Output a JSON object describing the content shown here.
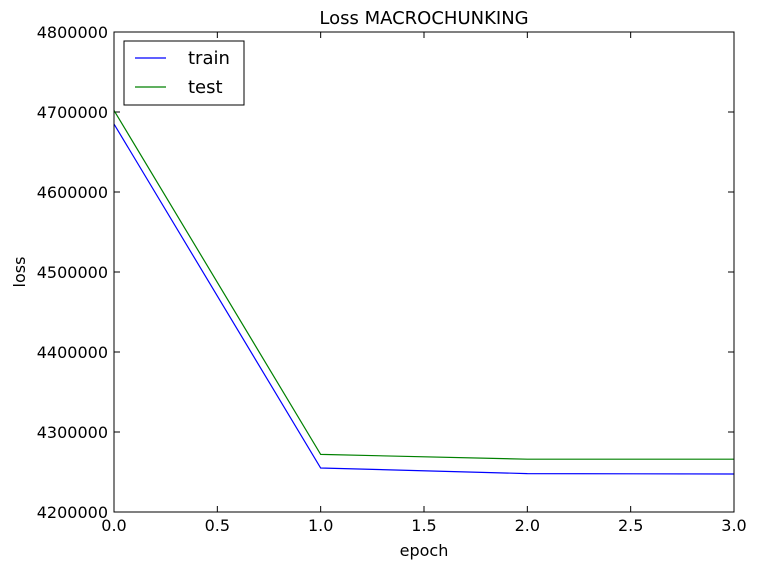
{
  "chart_data": {
    "type": "line",
    "title": "Loss MACROCHUNKING",
    "xlabel": "epoch",
    "ylabel": "loss",
    "xlim": [
      0.0,
      3.0
    ],
    "ylim": [
      4200000,
      4800000
    ],
    "xticks": [
      "0.0",
      "0.5",
      "1.0",
      "1.5",
      "2.0",
      "2.5",
      "3.0"
    ],
    "yticks": [
      "4200000",
      "4300000",
      "4400000",
      "4500000",
      "4600000",
      "4700000",
      "4800000"
    ],
    "grid": false,
    "legend_position": "top-left",
    "x": [
      0,
      1,
      2,
      3
    ],
    "series": [
      {
        "name": "train",
        "color": "#0000ff",
        "values": [
          4685000,
          4255000,
          4248000,
          4247500
        ]
      },
      {
        "name": "test",
        "color": "#008000",
        "values": [
          4702000,
          4272000,
          4266000,
          4266000
        ]
      }
    ]
  }
}
